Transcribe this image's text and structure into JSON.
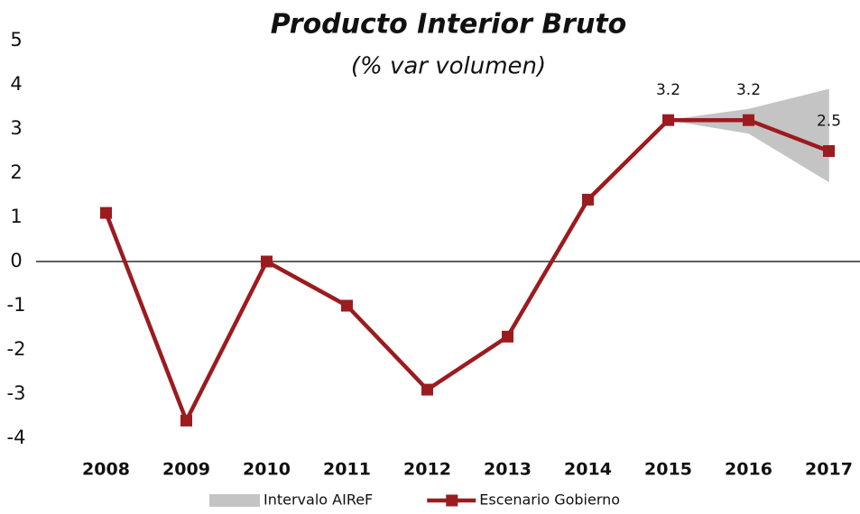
{
  "chart_data": {
    "type": "line",
    "title": "Producto Interior Bruto",
    "subtitle": "(% var volumen)",
    "categories": [
      "2008",
      "2009",
      "2010",
      "2011",
      "2012",
      "2013",
      "2014",
      "2015",
      "2016",
      "2017"
    ],
    "series": [
      {
        "name": "Intervalo AIReF",
        "type": "band",
        "color": "#c4c4c4",
        "lower": [
          null,
          null,
          null,
          null,
          null,
          null,
          null,
          3.2,
          2.9,
          1.8
        ],
        "upper": [
          null,
          null,
          null,
          null,
          null,
          null,
          null,
          3.2,
          3.45,
          3.9
        ]
      },
      {
        "name": "Escenario Gobierno",
        "type": "line",
        "color": "#9b1b1f",
        "values": [
          1.1,
          -3.6,
          0.0,
          -1.0,
          -2.9,
          -1.7,
          1.4,
          3.2,
          3.2,
          2.5
        ],
        "value_labels": [
          null,
          null,
          null,
          null,
          null,
          null,
          null,
          "3.2",
          "3.2",
          "2.5"
        ]
      }
    ],
    "ylim": [
      -4,
      5
    ],
    "yticks": [
      -4,
      -3,
      -2,
      -1,
      0,
      1,
      2,
      3,
      4,
      5
    ],
    "grid": false,
    "legend": "bottom"
  }
}
